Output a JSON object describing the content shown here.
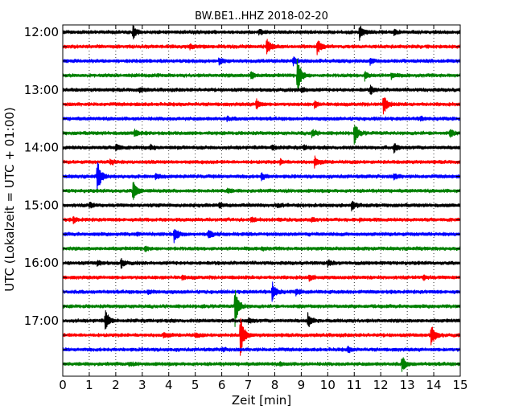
{
  "chart_data": {
    "type": "line",
    "title": "BW.BE1..HHZ 2018-02-20",
    "xlabel": "Zeit  [min]",
    "ylabel": "UTC (Lokalzeit = UTC + 01:00)",
    "xlim": [
      0,
      15
    ],
    "x_ticks": [
      "0",
      "1",
      "2",
      "3",
      "4",
      "5",
      "6",
      "7",
      "8",
      "9",
      "10",
      "11",
      "12",
      "13",
      "14",
      "15"
    ],
    "y_tick_labels": [
      "12:00",
      "13:00",
      "14:00",
      "15:00",
      "16:00",
      "17:00"
    ],
    "grid": "vertical dotted",
    "row_interval_min": 15,
    "series_colors": [
      "#000000",
      "#ff0000",
      "#0000ff",
      "#008000"
    ],
    "rows": [
      {
        "start": "12:00",
        "color": "#000000",
        "events": [
          {
            "t": 2.65,
            "amp": 0.45
          },
          {
            "t": 11.2,
            "amp": 0.55
          },
          {
            "t": 12.5,
            "amp": 0.2
          },
          {
            "t": 7.4,
            "amp": 0.15
          }
        ]
      },
      {
        "start": "12:15",
        "color": "#ff0000",
        "events": [
          {
            "t": 7.7,
            "amp": 0.6
          },
          {
            "t": 9.6,
            "amp": 0.55
          },
          {
            "t": 4.8,
            "amp": 0.15
          }
        ]
      },
      {
        "start": "12:30",
        "color": "#0000ff",
        "events": [
          {
            "t": 8.7,
            "amp": 0.3
          },
          {
            "t": 11.6,
            "amp": 0.2
          },
          {
            "t": 5.9,
            "amp": 0.25
          }
        ]
      },
      {
        "start": "12:45",
        "color": "#008000",
        "events": [
          {
            "t": 8.85,
            "amp": 1.4
          },
          {
            "t": 7.1,
            "amp": 0.3
          },
          {
            "t": 11.4,
            "amp": 0.3
          },
          {
            "t": 12.4,
            "amp": 0.2
          }
        ]
      },
      {
        "start": "13:00",
        "color": "#000000",
        "events": [
          {
            "t": 11.6,
            "amp": 0.3
          },
          {
            "t": 9.0,
            "amp": 0.2
          },
          {
            "t": 2.9,
            "amp": 0.15
          }
        ]
      },
      {
        "start": "13:15",
        "color": "#ff0000",
        "events": [
          {
            "t": 12.1,
            "amp": 0.7
          },
          {
            "t": 7.3,
            "amp": 0.35
          },
          {
            "t": 9.5,
            "amp": 0.2
          }
        ]
      },
      {
        "start": "13:30",
        "color": "#0000ff",
        "events": [
          {
            "t": 13.5,
            "amp": 0.15
          },
          {
            "t": 6.2,
            "amp": 0.1
          }
        ]
      },
      {
        "start": "13:45",
        "color": "#008000",
        "events": [
          {
            "t": 11.0,
            "amp": 0.75
          },
          {
            "t": 2.7,
            "amp": 0.3
          },
          {
            "t": 9.4,
            "amp": 0.3
          },
          {
            "t": 14.6,
            "amp": 0.25
          }
        ]
      },
      {
        "start": "14:00",
        "color": "#000000",
        "events": [
          {
            "t": 2.0,
            "amp": 0.3
          },
          {
            "t": 12.5,
            "amp": 0.3
          },
          {
            "t": 7.9,
            "amp": 0.2
          },
          {
            "t": 9.1,
            "amp": 0.15
          },
          {
            "t": 3.3,
            "amp": 0.15
          }
        ]
      },
      {
        "start": "14:15",
        "color": "#ff0000",
        "events": [
          {
            "t": 9.5,
            "amp": 0.4
          },
          {
            "t": 1.8,
            "amp": 0.2
          },
          {
            "t": 8.2,
            "amp": 0.15
          }
        ]
      },
      {
        "start": "14:30",
        "color": "#0000ff",
        "events": [
          {
            "t": 1.3,
            "amp": 1.25
          },
          {
            "t": 7.5,
            "amp": 0.25
          },
          {
            "t": 12.5,
            "amp": 0.2
          },
          {
            "t": 3.5,
            "amp": 0.15
          }
        ]
      },
      {
        "start": "14:45",
        "color": "#008000",
        "events": [
          {
            "t": 2.65,
            "amp": 0.75
          },
          {
            "t": 6.2,
            "amp": 0.15
          }
        ]
      },
      {
        "start": "15:00",
        "color": "#000000",
        "events": [
          {
            "t": 10.9,
            "amp": 0.35
          },
          {
            "t": 1.0,
            "amp": 0.2
          },
          {
            "t": 5.9,
            "amp": 0.2
          },
          {
            "t": 8.1,
            "amp": 0.15
          }
        ]
      },
      {
        "start": "15:15",
        "color": "#ff0000",
        "events": [
          {
            "t": 0.4,
            "amp": 0.2
          },
          {
            "t": 7.1,
            "amp": 0.15
          },
          {
            "t": 9.4,
            "amp": 0.15
          },
          {
            "t": 11.2,
            "amp": 0.1
          }
        ]
      },
      {
        "start": "15:30",
        "color": "#0000ff",
        "events": [
          {
            "t": 4.2,
            "amp": 0.55
          },
          {
            "t": 5.5,
            "amp": 0.3
          },
          {
            "t": 2.8,
            "amp": 0.1
          }
        ]
      },
      {
        "start": "15:45",
        "color": "#008000",
        "events": [
          {
            "t": 3.1,
            "amp": 0.15
          },
          {
            "t": 7.5,
            "amp": 0.1
          }
        ]
      },
      {
        "start": "16:00",
        "color": "#000000",
        "events": [
          {
            "t": 2.2,
            "amp": 0.3
          },
          {
            "t": 10.0,
            "amp": 0.25
          },
          {
            "t": 1.3,
            "amp": 0.15
          }
        ]
      },
      {
        "start": "16:15",
        "color": "#ff0000",
        "events": [
          {
            "t": 9.3,
            "amp": 0.2
          },
          {
            "t": 13.6,
            "amp": 0.15
          },
          {
            "t": 4.5,
            "amp": 0.1
          }
        ]
      },
      {
        "start": "16:30",
        "color": "#0000ff",
        "events": [
          {
            "t": 7.9,
            "amp": 0.7
          },
          {
            "t": 3.2,
            "amp": 0.15
          },
          {
            "t": 8.8,
            "amp": 0.2
          }
        ]
      },
      {
        "start": "16:45",
        "color": "#008000",
        "events": [
          {
            "t": 6.5,
            "amp": 1.45
          }
        ]
      },
      {
        "start": "17:00",
        "color": "#000000",
        "events": [
          {
            "t": 1.6,
            "amp": 0.8
          },
          {
            "t": 9.25,
            "amp": 0.5
          },
          {
            "t": 7.0,
            "amp": 0.2
          }
        ]
      },
      {
        "start": "17:15",
        "color": "#ff0000",
        "events": [
          {
            "t": 6.7,
            "amp": 1.5
          },
          {
            "t": 13.9,
            "amp": 0.85
          },
          {
            "t": 3.8,
            "amp": 0.2
          },
          {
            "t": 5.0,
            "amp": 0.15
          }
        ]
      },
      {
        "start": "17:30",
        "color": "#0000ff",
        "events": [
          {
            "t": 10.75,
            "amp": 0.2
          },
          {
            "t": 6.0,
            "amp": 0.1
          }
        ]
      },
      {
        "start": "17:45",
        "color": "#008000",
        "events": [
          {
            "t": 12.8,
            "amp": 0.55
          },
          {
            "t": 2.5,
            "amp": 0.1
          },
          {
            "t": 8.2,
            "amp": 0.1
          }
        ]
      }
    ]
  }
}
